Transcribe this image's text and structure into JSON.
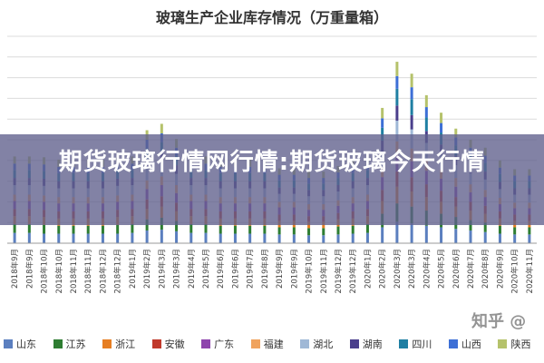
{
  "banner": {
    "text": "期货玻璃行情网行情:期货玻璃今天行情"
  },
  "watermark": "知乎 @",
  "chart_data": {
    "type": "bar",
    "stacked": true,
    "title": "玻璃生产企业库存情况（万重量箱）",
    "xlabel": "",
    "ylabel": "",
    "grid": true,
    "legend_position": "bottom",
    "categories": [
      "2018年9月",
      "2018年9月",
      "2018年10月",
      "2018年10月",
      "2018年11月",
      "2018年11月",
      "2018年12月",
      "2018年12月",
      "2019年1月",
      "2019年2月",
      "2019年3月",
      "2019年3月",
      "2019年4月",
      "2019年5月",
      "2019年6月",
      "2019年6月",
      "2019年7月",
      "2019年8月",
      "2019年9月",
      "2019年9月",
      "2019年10月",
      "2019年11月",
      "2019年12月",
      "2019年12月",
      "2020年1月",
      "2020年2月",
      "2020年3月",
      "2020年3月",
      "2020年4月",
      "2020年5月",
      "2020年6月",
      "2020年7月",
      "2020年8月",
      "2020年9月",
      "2020年10月",
      "2020年11月"
    ],
    "series": [
      {
        "name": "山东",
        "color": "#5b7fbf",
        "values": [
          13,
          13,
          12,
          12,
          12,
          12,
          12,
          12,
          13,
          16,
          17,
          15,
          13,
          13,
          12,
          12,
          12,
          12,
          11,
          11,
          10,
          10,
          11,
          12,
          13,
          20,
          27,
          25,
          22,
          20,
          18,
          16,
          14,
          12,
          11,
          11
        ]
      },
      {
        "name": "江苏",
        "color": "#2e7d32",
        "values": [
          11,
          11,
          11,
          10,
          10,
          10,
          10,
          11,
          11,
          14,
          15,
          13,
          11,
          11,
          10,
          10,
          10,
          10,
          9,
          9,
          9,
          9,
          10,
          10,
          11,
          17,
          23,
          21,
          19,
          17,
          15,
          13,
          12,
          10,
          9,
          9
        ]
      },
      {
        "name": "浙江",
        "color": "#e67e22",
        "values": [
          10,
          10,
          10,
          9,
          9,
          9,
          9,
          10,
          10,
          13,
          14,
          12,
          10,
          10,
          9,
          9,
          9,
          9,
          8,
          8,
          8,
          8,
          9,
          9,
          10,
          16,
          21,
          19,
          17,
          15,
          13,
          12,
          11,
          9,
          8,
          8
        ]
      },
      {
        "name": "安徽",
        "color": "#c0392b",
        "values": [
          9,
          9,
          9,
          9,
          9,
          9,
          9,
          9,
          9,
          12,
          13,
          11,
          9,
          9,
          9,
          9,
          9,
          9,
          8,
          8,
          7,
          7,
          8,
          9,
          9,
          14,
          19,
          18,
          16,
          14,
          12,
          11,
          10,
          9,
          8,
          8
        ]
      },
      {
        "name": "广东",
        "color": "#8e44ad",
        "values": [
          10,
          10,
          10,
          10,
          10,
          10,
          10,
          10,
          10,
          13,
          14,
          12,
          10,
          10,
          10,
          10,
          10,
          10,
          9,
          9,
          8,
          8,
          9,
          10,
          10,
          16,
          21,
          20,
          17,
          15,
          13,
          12,
          11,
          9,
          8,
          8
        ]
      },
      {
        "name": "福建",
        "color": "#f0a35e",
        "values": [
          8,
          8,
          8,
          8,
          8,
          8,
          8,
          8,
          8,
          11,
          11,
          10,
          8,
          8,
          8,
          8,
          8,
          8,
          7,
          7,
          7,
          7,
          7,
          8,
          8,
          13,
          17,
          16,
          14,
          12,
          11,
          10,
          9,
          8,
          7,
          7
        ]
      },
      {
        "name": "湖北",
        "color": "#9fb8d6",
        "values": [
          12,
          12,
          12,
          11,
          11,
          11,
          11,
          12,
          12,
          15,
          16,
          14,
          12,
          12,
          11,
          11,
          11,
          11,
          10,
          10,
          10,
          10,
          11,
          11,
          12,
          19,
          26,
          24,
          21,
          18,
          16,
          14,
          13,
          11,
          10,
          10
        ]
      },
      {
        "name": "湖南",
        "color": "#4a3f8c",
        "values": [
          9,
          9,
          9,
          9,
          9,
          9,
          9,
          9,
          9,
          12,
          13,
          11,
          9,
          9,
          9,
          9,
          9,
          9,
          8,
          8,
          8,
          8,
          8,
          9,
          9,
          14,
          19,
          18,
          15,
          13,
          12,
          11,
          10,
          9,
          8,
          8
        ]
      },
      {
        "name": "四川",
        "color": "#1f7fa3",
        "values": [
          10,
          10,
          10,
          10,
          10,
          10,
          10,
          10,
          10,
          13,
          14,
          12,
          10,
          10,
          10,
          10,
          10,
          10,
          9,
          9,
          8,
          8,
          9,
          10,
          10,
          16,
          21,
          20,
          17,
          15,
          13,
          12,
          11,
          10,
          9,
          9
        ]
      },
      {
        "name": "山西",
        "color": "#3d6fd6",
        "values": [
          8,
          8,
          8,
          8,
          8,
          8,
          8,
          8,
          8,
          11,
          11,
          10,
          8,
          8,
          8,
          8,
          8,
          8,
          7,
          7,
          7,
          7,
          7,
          8,
          8,
          12,
          16,
          15,
          13,
          12,
          10,
          9,
          9,
          8,
          7,
          7
        ]
      },
      {
        "name": "陕西",
        "color": "#b5c26b",
        "values": [
          9,
          9,
          9,
          9,
          9,
          9,
          9,
          9,
          9,
          12,
          12,
          11,
          9,
          9,
          9,
          9,
          9,
          9,
          8,
          8,
          8,
          8,
          8,
          9,
          9,
          13,
          18,
          17,
          15,
          13,
          11,
          10,
          10,
          9,
          8,
          8
        ]
      }
    ],
    "ylim": [
      0,
      260
    ]
  }
}
